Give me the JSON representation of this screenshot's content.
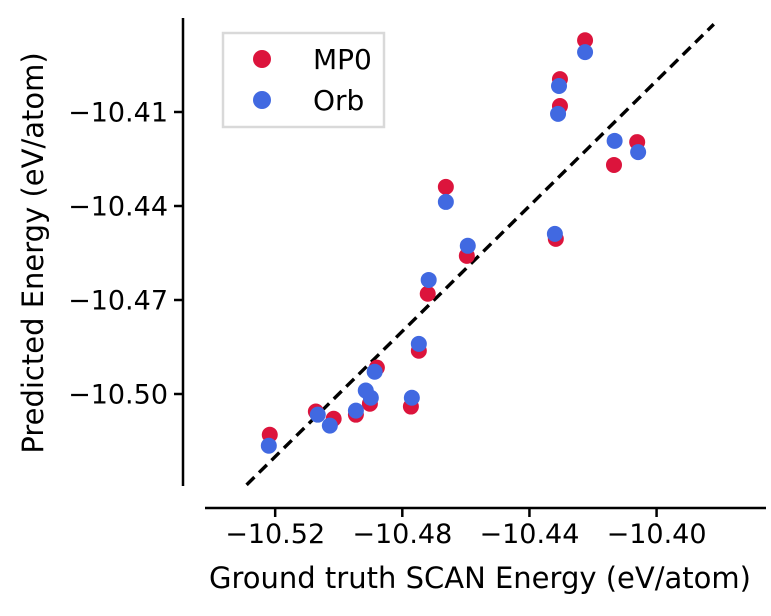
{
  "chart_data": {
    "type": "scatter",
    "title": "",
    "xlabel": "Ground truth SCAN Energy (eV/atom)",
    "ylabel": "Predicted Energy (eV/atom)",
    "xlim": [
      -10.549,
      -10.364
    ],
    "ylim": [
      -10.53,
      -10.38
    ],
    "xticks": [
      -10.52,
      -10.48,
      -10.44,
      -10.4
    ],
    "yticks": [
      -10.41,
      -10.44,
      -10.47,
      -10.5
    ],
    "tick_decimals": 2,
    "grid": false,
    "legend": {
      "position": "upper-left",
      "border_color": "#d9d9d9",
      "background": "#ffffff"
    },
    "reference_line": {
      "description": "identity line y = x",
      "style": "dashed",
      "color": "#000000",
      "from": [
        -10.529,
        -10.529
      ],
      "to": [
        -10.382,
        -10.382
      ]
    },
    "series": [
      {
        "name": "MP0",
        "color": "#dc143c",
        "marker": "circle",
        "points": [
          [
            -10.4225,
            -10.3871
          ],
          [
            -10.4304,
            -10.3995
          ],
          [
            -10.4304,
            -10.4081
          ],
          [
            -10.4061,
            -10.4196
          ],
          [
            -10.4134,
            -10.4269
          ],
          [
            -10.4663,
            -10.4339
          ],
          [
            -10.4317,
            -10.4505
          ],
          [
            -10.4597,
            -10.4559
          ],
          [
            -10.472,
            -10.468
          ],
          [
            -10.4748,
            -10.4862
          ],
          [
            -10.488,
            -10.4916
          ],
          [
            -10.4902,
            -10.5031
          ],
          [
            -10.4946,
            -10.5066
          ],
          [
            -10.5072,
            -10.5056
          ],
          [
            -10.5016,
            -10.5079
          ],
          [
            -10.4773,
            -10.504
          ],
          [
            -10.5217,
            -10.513
          ]
        ]
      },
      {
        "name": "Orb",
        "color": "#4169e1",
        "marker": "circle",
        "points": [
          [
            -10.4225,
            -10.3909
          ],
          [
            -10.4307,
            -10.4017
          ],
          [
            -10.431,
            -10.4106
          ],
          [
            -10.4058,
            -10.4228
          ],
          [
            -10.4132,
            -10.4192
          ],
          [
            -10.4663,
            -10.4387
          ],
          [
            -10.432,
            -10.4489
          ],
          [
            -10.4594,
            -10.4527
          ],
          [
            -10.4717,
            -10.4636
          ],
          [
            -10.4748,
            -10.484
          ],
          [
            -10.4887,
            -10.4929
          ],
          [
            -10.4915,
            -10.4989
          ],
          [
            -10.4899,
            -10.5012
          ],
          [
            -10.4946,
            -10.5053
          ],
          [
            -10.5066,
            -10.5066
          ],
          [
            -10.5028,
            -10.5101
          ],
          [
            -10.477,
            -10.5012
          ],
          [
            -10.522,
            -10.5165
          ]
        ]
      }
    ]
  }
}
